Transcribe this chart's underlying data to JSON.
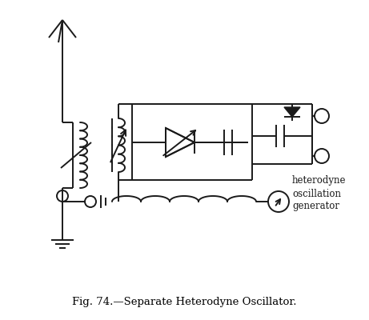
{
  "title": "Fig. 74.—Separate Heterodyne Oscillator.",
  "bg_color": "#ffffff",
  "line_color": "#1a1a1a",
  "label_text": "heterodyne\noscillation\ngenerator",
  "fig_width": 4.61,
  "fig_height": 4.0,
  "dpi": 100
}
